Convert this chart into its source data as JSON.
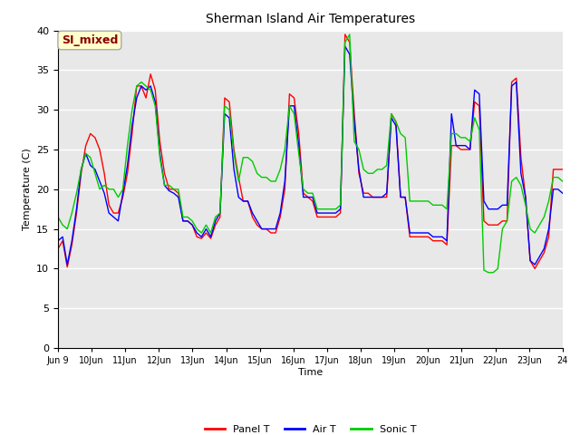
{
  "title": "Sherman Island Air Temperatures",
  "xlabel": "Time",
  "ylabel": "Temperature (C)",
  "background_color": "#e8e8e8",
  "plot_bg_color": "#e8e8e8",
  "ylim": [
    0,
    40
  ],
  "yticks": [
    0,
    5,
    10,
    15,
    20,
    25,
    30,
    35,
    40
  ],
  "annotation_text": "SI_mixed",
  "annotation_color": "#8b0000",
  "annotation_bg": "#ffffcc",
  "legend_labels": [
    "Panel T",
    "Air T",
    "Sonic T"
  ],
  "legend_colors": [
    "#ff0000",
    "#0000ff",
    "#00cc00"
  ],
  "line_colors": {
    "panel": "#ff0000",
    "air": "#0000ff",
    "sonic": "#00cc00"
  },
  "x_tick_labels": [
    "Jun 9",
    "Jun 10",
    "11Jun",
    "12Jun",
    "13Jun",
    "14Jun",
    "15Jun",
    "16Jun",
    "17Jun",
    "18Jun",
    "19Jun",
    "20Jun",
    "21Jun",
    "22Jun",
    "23Jun",
    "24"
  ],
  "x_ticks_days": [
    9,
    10,
    11,
    12,
    13,
    14,
    15,
    16,
    17,
    18,
    19,
    20,
    21,
    22,
    23,
    24
  ],
  "panel_t": [
    12.5,
    13.5,
    10.2,
    13.0,
    17.0,
    22.0,
    25.5,
    27.0,
    26.5,
    25.0,
    22.0,
    18.0,
    17.0,
    17.0,
    19.0,
    22.0,
    27.0,
    33.0,
    33.0,
    31.5,
    34.5,
    32.5,
    26.0,
    22.0,
    20.0,
    20.0,
    19.5,
    16.0,
    16.0,
    15.5,
    14.0,
    13.8,
    14.5,
    13.8,
    15.5,
    16.5,
    31.5,
    31.0,
    25.0,
    21.5,
    18.5,
    18.5,
    16.5,
    15.5,
    15.0,
    15.0,
    14.5,
    14.5,
    16.5,
    20.0,
    32.0,
    31.5,
    27.0,
    19.5,
    19.0,
    18.5,
    16.5,
    16.5,
    16.5,
    16.5,
    16.5,
    17.0,
    39.5,
    38.5,
    29.5,
    22.0,
    19.5,
    19.5,
    19.0,
    19.0,
    19.0,
    19.0,
    29.5,
    28.5,
    19.0,
    19.0,
    14.0,
    14.0,
    14.0,
    14.0,
    14.0,
    13.5,
    13.5,
    13.5,
    13.0,
    25.5,
    25.5,
    25.0,
    25.0,
    25.0,
    31.0,
    30.5,
    16.0,
    15.5,
    15.5,
    15.5,
    16.0,
    16.0,
    33.5,
    34.0,
    24.0,
    19.0,
    11.0,
    10.0,
    11.0,
    12.0,
    14.0,
    22.5,
    22.5,
    22.5
  ],
  "air_t": [
    13.5,
    14.0,
    10.5,
    13.5,
    17.5,
    22.5,
    24.5,
    23.0,
    22.5,
    21.0,
    19.5,
    17.0,
    16.5,
    16.0,
    19.5,
    23.0,
    28.0,
    31.5,
    33.0,
    32.5,
    33.0,
    31.0,
    24.5,
    20.5,
    19.8,
    19.5,
    19.0,
    16.0,
    16.0,
    15.5,
    14.5,
    14.0,
    15.0,
    14.0,
    16.0,
    17.0,
    29.5,
    29.0,
    22.5,
    19.0,
    18.5,
    18.5,
    17.0,
    16.0,
    15.0,
    15.0,
    15.0,
    15.0,
    17.0,
    21.0,
    30.5,
    30.5,
    25.5,
    19.0,
    19.0,
    19.0,
    17.0,
    17.0,
    17.0,
    17.0,
    17.0,
    17.5,
    38.0,
    37.0,
    28.5,
    22.5,
    19.0,
    19.0,
    19.0,
    19.0,
    19.0,
    19.5,
    29.0,
    28.0,
    19.0,
    19.0,
    14.5,
    14.5,
    14.5,
    14.5,
    14.5,
    14.0,
    14.0,
    14.0,
    13.5,
    29.5,
    25.5,
    25.5,
    25.5,
    25.0,
    32.5,
    32.0,
    18.5,
    17.5,
    17.5,
    17.5,
    18.0,
    18.0,
    33.0,
    33.5,
    22.0,
    19.0,
    11.0,
    10.5,
    11.5,
    12.5,
    15.0,
    20.0,
    20.0,
    19.5
  ],
  "sonic_t": [
    16.5,
    15.5,
    15.0,
    17.0,
    19.5,
    22.5,
    24.5,
    24.0,
    22.0,
    20.0,
    20.5,
    20.0,
    20.0,
    19.0,
    20.0,
    25.5,
    30.0,
    33.0,
    33.5,
    33.0,
    32.5,
    30.5,
    24.0,
    20.5,
    20.5,
    20.0,
    20.0,
    16.5,
    16.5,
    16.0,
    15.0,
    14.5,
    15.5,
    14.5,
    16.5,
    17.0,
    30.5,
    30.0,
    24.5,
    21.0,
    24.0,
    24.0,
    23.5,
    22.0,
    21.5,
    21.5,
    21.0,
    21.0,
    22.5,
    25.0,
    30.5,
    29.5,
    24.5,
    20.0,
    19.5,
    19.5,
    17.5,
    17.5,
    17.5,
    17.5,
    17.5,
    18.0,
    38.5,
    39.5,
    26.0,
    25.0,
    22.5,
    22.0,
    22.0,
    22.5,
    22.5,
    23.0,
    29.5,
    28.5,
    27.0,
    26.5,
    18.5,
    18.5,
    18.5,
    18.5,
    18.5,
    18.0,
    18.0,
    18.0,
    17.5,
    27.0,
    27.0,
    26.5,
    26.5,
    26.0,
    29.0,
    27.5,
    9.8,
    9.5,
    9.5,
    10.0,
    15.0,
    16.0,
    21.0,
    21.5,
    20.5,
    18.0,
    15.0,
    14.5,
    15.5,
    16.5,
    18.5,
    21.5,
    21.5,
    21.0
  ]
}
